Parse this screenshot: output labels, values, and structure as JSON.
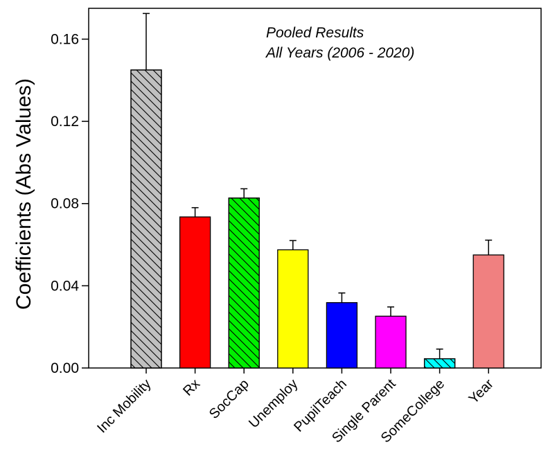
{
  "chart_data": {
    "type": "bar",
    "title": "",
    "xlabel": "",
    "ylabel": "Coefficients (Abs Values)",
    "ylim": [
      0,
      0.175
    ],
    "yticks": [
      0.0,
      0.04,
      0.08,
      0.12,
      0.16
    ],
    "ytick_labels": [
      "0.00",
      "0.04",
      "0.08",
      "0.12",
      "0.16"
    ],
    "grid": false,
    "annotations": [
      "Pooled Results",
      "All Years (2006 - 2020)"
    ],
    "categories": [
      "Inc Mobility",
      "Rx",
      "SocCap",
      "Unemploy",
      "PupilTeach",
      "Single Parent",
      "SomeCollege",
      "Year"
    ],
    "values": [
      0.145,
      0.0735,
      0.0827,
      0.0575,
      0.0318,
      0.0252,
      0.0045,
      0.055
    ],
    "errors": [
      0.0275,
      0.0045,
      0.0045,
      0.0045,
      0.0047,
      0.0045,
      0.0047,
      0.0072
    ],
    "colors": [
      "#c0c0c0",
      "#ff0000",
      "#00ee00",
      "#ffff00",
      "#0000ff",
      "#ff00ff",
      "#00ffff",
      "#f08080"
    ],
    "hatched": [
      true,
      false,
      true,
      false,
      false,
      false,
      true,
      false
    ]
  }
}
